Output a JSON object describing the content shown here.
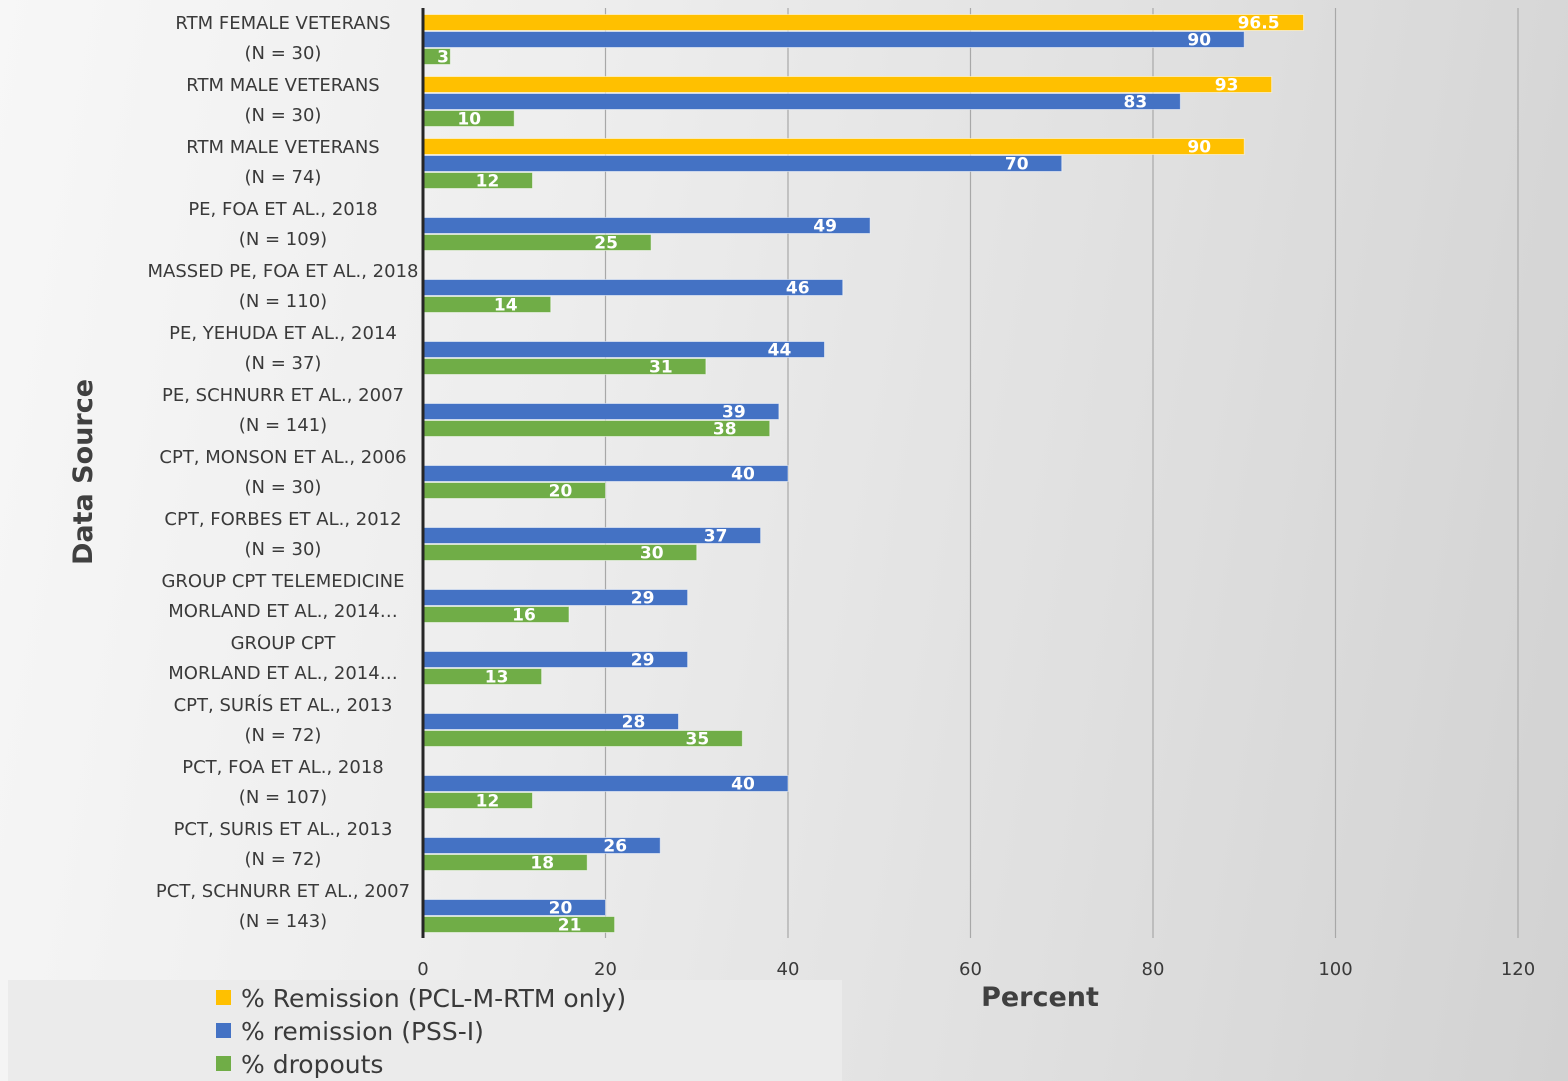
{
  "chart_data": {
    "type": "bar",
    "orientation": "horizontal",
    "xlabel": "Percent",
    "ylabel": "Data Source",
    "xlim": [
      0,
      120
    ],
    "x_ticks": [
      0,
      20,
      40,
      60,
      80,
      100,
      120
    ],
    "grid": "vertical",
    "legend_position": "bottom-left",
    "categories": [
      [
        "RTM FEMALE VETERANS",
        "(N = 30)"
      ],
      [
        "RTM MALE VETERANS",
        "(N = 30)"
      ],
      [
        "RTM MALE VETERANS",
        "(N = 74)"
      ],
      [
        "PE, FOA ET AL., 2018",
        "(N = 109)"
      ],
      [
        "MASSED PE, FOA ET AL., 2018",
        "(N = 110)"
      ],
      [
        "PE, YEHUDA ET AL., 2014",
        "(N = 37)"
      ],
      [
        "PE, SCHNURR ET AL., 2007",
        "(N = 141)"
      ],
      [
        "CPT, MONSON ET AL., 2006",
        "(N = 30)"
      ],
      [
        "CPT, FORBES ET AL., 2012",
        "(N = 30)"
      ],
      [
        "GROUP CPT TELEMEDICINE",
        "MORLAND ET AL., 2014…"
      ],
      [
        "GROUP CPT",
        "MORLAND ET AL., 2014…"
      ],
      [
        "CPT, SURÍS ET AL., 2013",
        "(N = 72)"
      ],
      [
        "PCT, FOA ET AL., 2018",
        "(N = 107)"
      ],
      [
        "PCT, SURIS ET AL., 2013",
        "(N = 72)"
      ],
      [
        "PCT, SCHNURR ET AL., 2007",
        "(N = 143)"
      ]
    ],
    "series": [
      {
        "name": "% Remission (PCL-M-RTM only)",
        "color": "#ffc000",
        "values": [
          96.5,
          93,
          90,
          null,
          null,
          null,
          null,
          null,
          null,
          null,
          null,
          null,
          null,
          null,
          null
        ],
        "labels": [
          "96.5",
          "93",
          "90",
          "",
          "",
          "",
          "",
          "",
          "",
          "",
          "",
          "",
          "",
          "",
          ""
        ]
      },
      {
        "name": "% remission (PSS-I)",
        "color": "#4472c4",
        "values": [
          90,
          83,
          70,
          49,
          46,
          44,
          39,
          40,
          37,
          29,
          29,
          28,
          40,
          26,
          20
        ],
        "labels": [
          "90",
          "83",
          "70",
          "49",
          "46",
          "44",
          "39",
          "40",
          "37",
          "29",
          "29",
          "28",
          "40",
          "26",
          "20"
        ]
      },
      {
        "name": "% dropouts",
        "color": "#70ad47",
        "values": [
          3,
          10,
          12,
          25,
          14,
          31,
          38,
          20,
          30,
          16,
          13,
          35,
          12,
          18,
          21
        ],
        "labels": [
          "3",
          "10",
          "12",
          "25",
          "14",
          "31",
          "38",
          "20",
          "30",
          "16",
          "13",
          "35",
          "12",
          "18",
          "21"
        ]
      }
    ]
  }
}
